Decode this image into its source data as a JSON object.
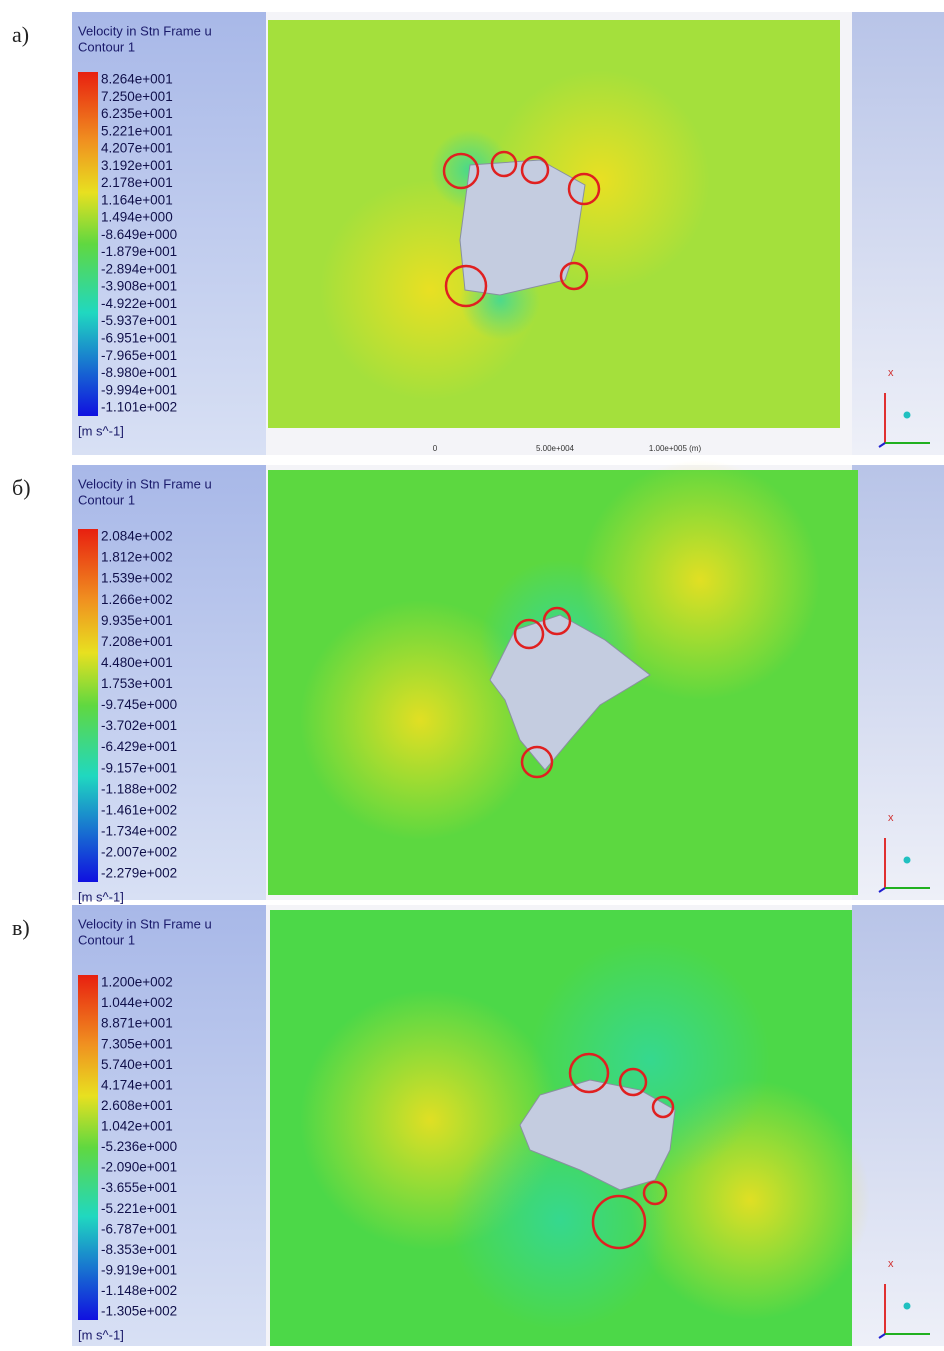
{
  "panels": [
    {
      "label": "а)",
      "title": "Velocity in Stn Frame u",
      "subtitle": "Contour 1",
      "ticks": [
        "8.264e+001",
        "7.250e+001",
        "6.235e+001",
        "5.221e+001",
        "4.207e+001",
        "3.192e+001",
        "2.178e+001",
        "1.164e+001",
        "1.494e+000",
        "-8.649e+000",
        "-1.879e+001",
        "-2.894e+001",
        "-3.908e+001",
        "-4.922e+001",
        "-5.937e+001",
        "-6.951e+001",
        "-7.965e+001",
        "-8.980e+001",
        "-9.994e+001",
        "-1.101e+002"
      ],
      "unit": "[m s^-1]",
      "scale": [
        "0",
        "5.00e+004",
        "1.00e+005 (m)"
      ],
      "axis": "x"
    },
    {
      "label": "б)",
      "title": "Velocity in Stn Frame u",
      "subtitle": "Contour 1",
      "ticks": [
        "2.084e+002",
        "1.812e+002",
        "1.539e+002",
        "1.266e+002",
        "9.935e+001",
        "7.208e+001",
        "4.480e+001",
        "1.753e+001",
        "-9.745e+000",
        "-3.702e+001",
        "-6.429e+001",
        "-9.157e+001",
        "-1.188e+002",
        "-1.461e+002",
        "-1.734e+002",
        "-2.007e+002",
        "-2.279e+002"
      ],
      "unit": "[m s^-1]",
      "axis": "x"
    },
    {
      "label": "в)",
      "title": "Velocity in Stn Frame u",
      "subtitle": "Contour 1",
      "ticks": [
        "1.200e+002",
        "1.044e+002",
        "8.871e+001",
        "7.305e+001",
        "5.740e+001",
        "4.174e+001",
        "2.608e+001",
        "1.042e+001",
        "-5.236e+000",
        "-2.090e+001",
        "-3.655e+001",
        "-5.221e+001",
        "-6.787e+001",
        "-8.353e+001",
        "-9.919e+001",
        "-1.148e+002",
        "-1.305e+002"
      ],
      "unit": "[m s^-1]",
      "axis": "x"
    }
  ]
}
